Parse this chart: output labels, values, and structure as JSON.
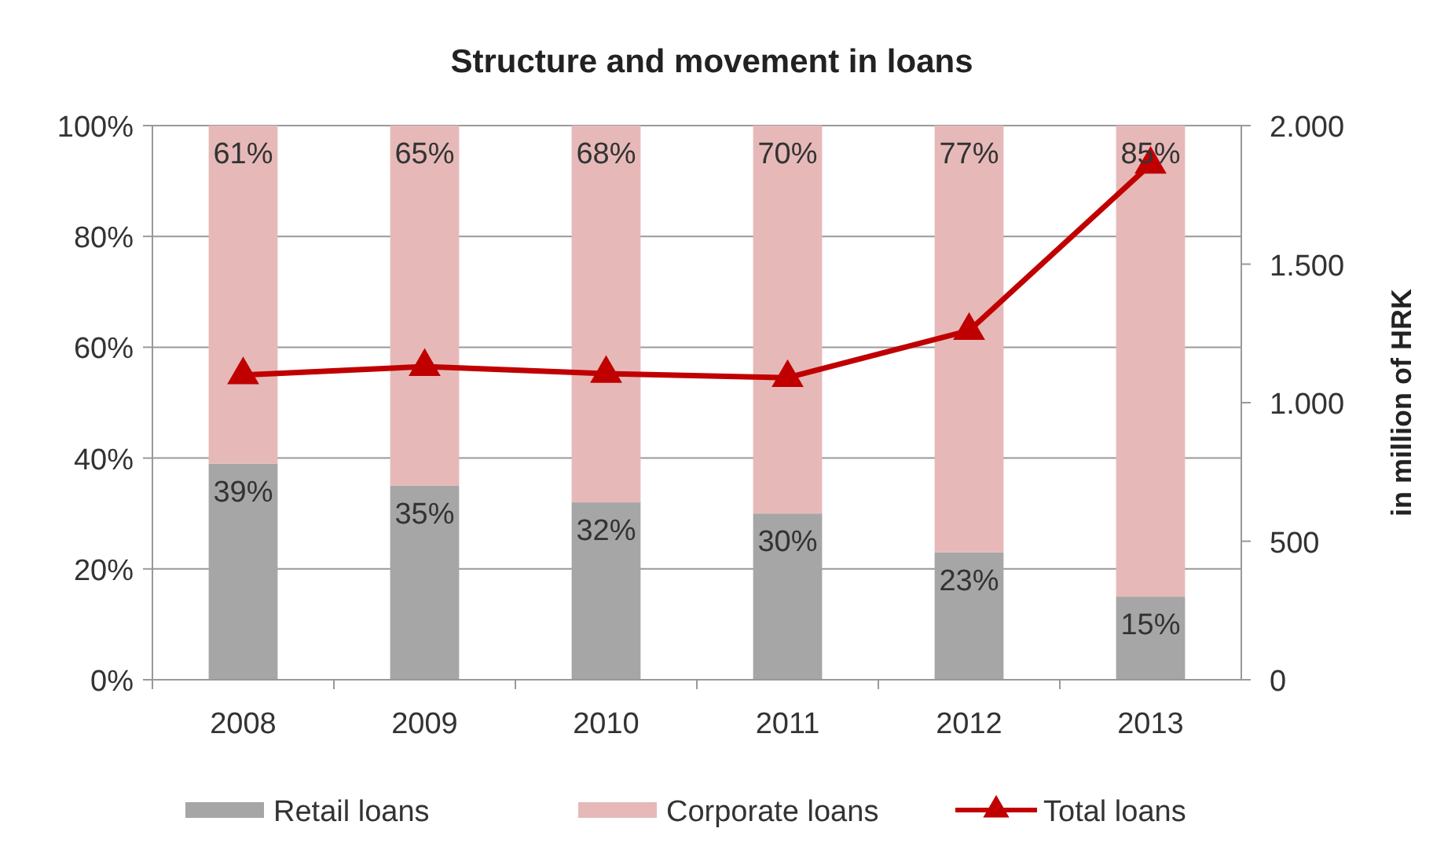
{
  "chart_data": {
    "type": "bar",
    "title": "Structure and movement in loans",
    "y2label": "in million of HRK",
    "categories": [
      "2008",
      "2009",
      "2010",
      "2011",
      "2012",
      "2013"
    ],
    "stacked": true,
    "series": [
      {
        "name": "Retail loans",
        "color": "#a6a6a6",
        "values": [
          39,
          35,
          32,
          30,
          23,
          15
        ],
        "value_labels": [
          "39%",
          "35%",
          "32%",
          "30%",
          "23%",
          "15%"
        ]
      },
      {
        "name": "Corporate loans",
        "color": "#e6b9b8",
        "values": [
          61,
          65,
          68,
          70,
          77,
          85
        ],
        "value_labels": [
          "61%",
          "65%",
          "68%",
          "70%",
          "77%",
          "85%"
        ]
      },
      {
        "name": "Total loans",
        "type": "line",
        "axis": "y2",
        "color": "#c00000",
        "marker": "triangle",
        "values": [
          1100,
          1130,
          1105,
          1090,
          1260,
          1860
        ]
      }
    ],
    "ylim": [
      0,
      100
    ],
    "yticks": [
      {
        "value": 0,
        "label": "0%"
      },
      {
        "value": 20,
        "label": "20%"
      },
      {
        "value": 40,
        "label": "40%"
      },
      {
        "value": 60,
        "label": "60%"
      },
      {
        "value": 80,
        "label": "80%"
      },
      {
        "value": 100,
        "label": "100%"
      }
    ],
    "y2lim": [
      0,
      2000
    ],
    "y2ticks": [
      0,
      {
        "value": 500,
        "label": "500"
      },
      {
        "value": 1000,
        "label": "1.000"
      },
      {
        "value": 1500,
        "label": "1.500"
      },
      {
        "value": 2000,
        "label": "2.000"
      }
    ],
    "grid": "y",
    "legend": "bottom"
  }
}
